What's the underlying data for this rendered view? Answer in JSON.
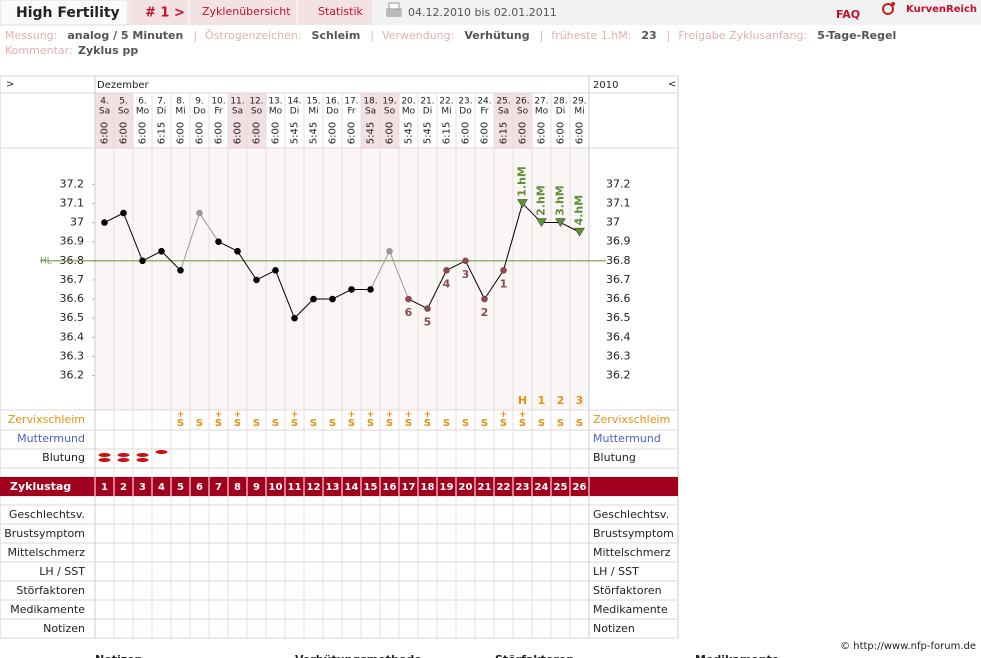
{
  "header": {
    "title": "High Fertility",
    "cycle": "# 1 >",
    "tabs": [
      "Zyklenübersicht",
      "Statistik"
    ],
    "range": "04.12.2010 bis 02.01.2011",
    "faq": "FAQ",
    "brand": "KurvenReich"
  },
  "info": {
    "fields": [
      {
        "label": "Messung:",
        "value": "analog / 5 Minuten"
      },
      {
        "label": "Östrogenzeichen:",
        "value": "Schleim"
      },
      {
        "label": "Verwendung:",
        "value": "Verhütung"
      },
      {
        "label": "früheste 1.hM:",
        "value": "23"
      },
      {
        "label": "Freigabe Zyklusanfang:",
        "value": "5-Tage-Regel"
      }
    ],
    "separator": "|",
    "comment_label": "Kommentar:",
    "comment": "Zyklus pp"
  },
  "chart_data": {
    "type": "line",
    "nav_prev": ">",
    "month": "Dezember",
    "year": "2010",
    "nav_next": "<",
    "dates": [
      "4.",
      "5.",
      "6.",
      "7.",
      "8.",
      "9.",
      "10.",
      "11.",
      "12.",
      "13.",
      "14.",
      "15.",
      "16.",
      "17.",
      "18.",
      "19.",
      "20.",
      "21.",
      "22.",
      "23.",
      "24.",
      "25.",
      "26.",
      "27.",
      "28.",
      "29."
    ],
    "weekdays": [
      "Sa",
      "So",
      "Mo",
      "Di",
      "Mi",
      "Do",
      "Fr",
      "Sa",
      "So",
      "Mo",
      "Di",
      "Mi",
      "Do",
      "Fr",
      "Sa",
      "So",
      "Mo",
      "Di",
      "Mi",
      "Do",
      "Fr",
      "Sa",
      "So",
      "Mo",
      "Di",
      "Mi"
    ],
    "times": [
      "6:00",
      "6:00",
      "6:00",
      "6:15",
      "6:00",
      "6:00",
      "6:00",
      "6:00",
      "6:00",
      "6:00",
      "5:45",
      "5:45",
      "6:00",
      "6:00",
      "5:45",
      "6:00",
      "5:45",
      "5:45",
      "6:15",
      "6:00",
      "6:00",
      "6:15",
      "6:00",
      "6:00",
      "6:00",
      "6:00"
    ],
    "values": [
      37.0,
      37.05,
      36.8,
      36.85,
      36.75,
      37.05,
      36.9,
      36.85,
      36.7,
      36.75,
      36.5,
      36.6,
      36.6,
      36.65,
      36.65,
      36.85,
      36.6,
      36.55,
      36.75,
      36.8,
      36.6,
      36.75,
      37.1,
      37.0,
      37.0,
      36.95
    ],
    "excluded": [
      false,
      false,
      false,
      false,
      false,
      true,
      false,
      false,
      false,
      false,
      false,
      false,
      false,
      false,
      false,
      true,
      false,
      false,
      false,
      false,
      false,
      false,
      false,
      false,
      false,
      false
    ],
    "color": "#000000",
    "excluded_color": "#9a9a9a",
    "low_color": "#8b4a52",
    "hm_color": "#5f8f35",
    "ylim": [
      36.03,
      37.39
    ],
    "yticks": [
      36.2,
      36.3,
      36.4,
      36.5,
      36.6,
      36.7,
      36.8,
      36.9,
      37,
      37.1,
      37.2
    ],
    "hl": {
      "label": "HL",
      "value": 36.8,
      "color": "#7a9a4a"
    },
    "low_labels": [
      null,
      null,
      null,
      null,
      null,
      null,
      null,
      null,
      null,
      null,
      null,
      null,
      null,
      null,
      null,
      null,
      6,
      5,
      4,
      3,
      2,
      1,
      null,
      null,
      null,
      null
    ],
    "hm_labels": [
      null,
      null,
      null,
      null,
      null,
      null,
      null,
      null,
      null,
      null,
      null,
      null,
      null,
      null,
      null,
      null,
      null,
      null,
      null,
      null,
      null,
      null,
      "1.hM",
      "2.hM",
      "3.hM",
      "4.hM"
    ],
    "phase_labels": [
      null,
      null,
      null,
      null,
      null,
      null,
      null,
      null,
      null,
      null,
      null,
      null,
      null,
      null,
      null,
      null,
      null,
      null,
      null,
      null,
      null,
      null,
      "H",
      "1",
      "2",
      "3"
    ]
  },
  "rows": {
    "mucus": {
      "label": "Zervixschleim",
      "values": [
        null,
        null,
        null,
        null,
        "S+",
        "S",
        "S+",
        "S+",
        "S",
        "S",
        "S+",
        "S",
        "S",
        "S+",
        "S+",
        "S+",
        "S+",
        "S+",
        "S",
        "S",
        "S",
        "S+",
        "S+",
        "S",
        "S",
        "S"
      ]
    },
    "cervix": {
      "label": "Muttermund"
    },
    "bleeding": {
      "label": "Blutung",
      "values": [
        2,
        2,
        2,
        1,
        null,
        null,
        null,
        null,
        null,
        null,
        null,
        null,
        null,
        null,
        null,
        null,
        null,
        null,
        null,
        null,
        null,
        null,
        null,
        null,
        null,
        null
      ]
    },
    "cycle_day": {
      "label": "Zyklustag",
      "values": [
        1,
        2,
        3,
        4,
        5,
        6,
        7,
        8,
        9,
        10,
        11,
        12,
        13,
        14,
        15,
        16,
        17,
        18,
        19,
        20,
        21,
        22,
        23,
        24,
        25,
        26
      ]
    },
    "symptoms": [
      "Geschlechtsv.",
      "Brustsymptom",
      "Mittelschmerz",
      "LH / SST",
      "Störfaktoren",
      "Medikamente",
      "Notizen"
    ]
  },
  "footer": {
    "copyright": "© http://www.nfp-forum.de",
    "headings": [
      "Notizen",
      "Verhütungsmethode",
      "Störfaktoren",
      "Medikamente"
    ]
  }
}
